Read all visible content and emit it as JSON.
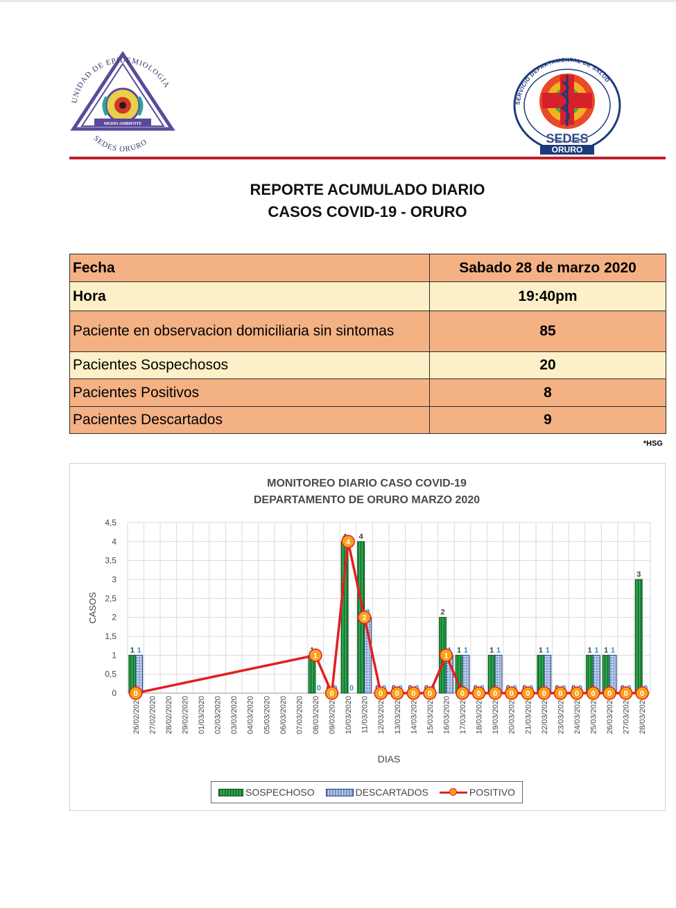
{
  "header": {
    "left_logo": {
      "ring_text": "UNIDAD DE EPIDEMIOLOGIA",
      "bottom_text": "SEDES ORURO",
      "band_text": "MEDIO AMBIENTE"
    },
    "right_logo": {
      "ring_text": "SERVICIO DEPARTAMENTAL DE SALUD",
      "name": "SEDES",
      "city": "ORURO"
    }
  },
  "report": {
    "title_line1": "REPORTE ACUMULADO DIARIO",
    "title_line2": "CASOS COVID-19 - ORURO"
  },
  "table": {
    "rows": [
      {
        "label": "Fecha",
        "value": "Sabado 28 de marzo 2020"
      },
      {
        "label": "Hora",
        "value": "19:40pm"
      },
      {
        "label": "Paciente en observacion domiciliaria sin sintomas",
        "value": "85"
      },
      {
        "label": "Pacientes Sospechosos",
        "value": "20"
      },
      {
        "label": "Pacientes Positivos",
        "value": "8"
      },
      {
        "label": "Pacientes Descartados",
        "value": "9"
      }
    ],
    "footnote": "*HSG"
  },
  "colors": {
    "sospechoso": "#1f8a3a",
    "descartados": "#8fa9d8",
    "positivo_line": "#e02020",
    "positivo_marker": "#f7a21b",
    "table_orange": "#f4b184",
    "table_cream": "#fdf0c8",
    "header_rule": "#c0202a"
  },
  "chart_data": {
    "type": "bar",
    "title_line1": "MONITOREO DIARIO CASO COVID-19",
    "title_line2": "DEPARTAMENTO DE ORURO MARZO 2020",
    "xlabel": "DIAS",
    "ylabel": "CASOS",
    "ylim": [
      0,
      4.5
    ],
    "yticks": [
      "0",
      "0,5",
      "1",
      "1,5",
      "2",
      "2,5",
      "3",
      "3,5",
      "4",
      "4,5"
    ],
    "grid": true,
    "legend_position": "bottom",
    "categories": [
      "26/02/2020",
      "27/02/2020",
      "28/02/2020",
      "29/02/2020",
      "01/03/2020",
      "02/03/2020",
      "03/03/2020",
      "04/03/2020",
      "05/03/2020",
      "06/03/2020",
      "07/03/2020",
      "08/03/2020",
      "09/03/2020",
      "10/03/2020",
      "11/03/2020",
      "12/03/2020",
      "13/03/2020",
      "14/03/2020",
      "15/03/2020",
      "16/03/2020",
      "17/03/2020",
      "18/03/2020",
      "19/03/2020",
      "20/03/2020",
      "21/03/2020",
      "22/03/2020",
      "23/03/2020",
      "24/03/2020",
      "25/03/2020",
      "26/03/2020",
      "27/03/2020",
      "28/03/2020"
    ],
    "series": [
      {
        "name": "SOSPECHOSO",
        "kind": "bar",
        "values": [
          1,
          null,
          null,
          null,
          null,
          null,
          null,
          null,
          null,
          null,
          null,
          1,
          0,
          4,
          4,
          0,
          0,
          0,
          0,
          2,
          1,
          0,
          1,
          0,
          0,
          1,
          0,
          0,
          1,
          1,
          0,
          3
        ]
      },
      {
        "name": "DESCARTADOS",
        "kind": "bar",
        "values": [
          1,
          null,
          null,
          null,
          null,
          null,
          null,
          null,
          null,
          null,
          null,
          0,
          0,
          0,
          2,
          0,
          0,
          0,
          0,
          1,
          1,
          0,
          1,
          0,
          0,
          1,
          0,
          0,
          1,
          1,
          0,
          0
        ]
      },
      {
        "name": "POSITIVO",
        "kind": "line",
        "values": [
          0,
          null,
          null,
          null,
          null,
          null,
          null,
          null,
          null,
          null,
          null,
          1,
          0,
          4,
          2,
          0,
          0,
          0,
          0,
          1,
          0,
          0,
          0,
          0,
          0,
          0,
          0,
          0,
          0,
          0,
          0,
          0
        ]
      }
    ]
  }
}
